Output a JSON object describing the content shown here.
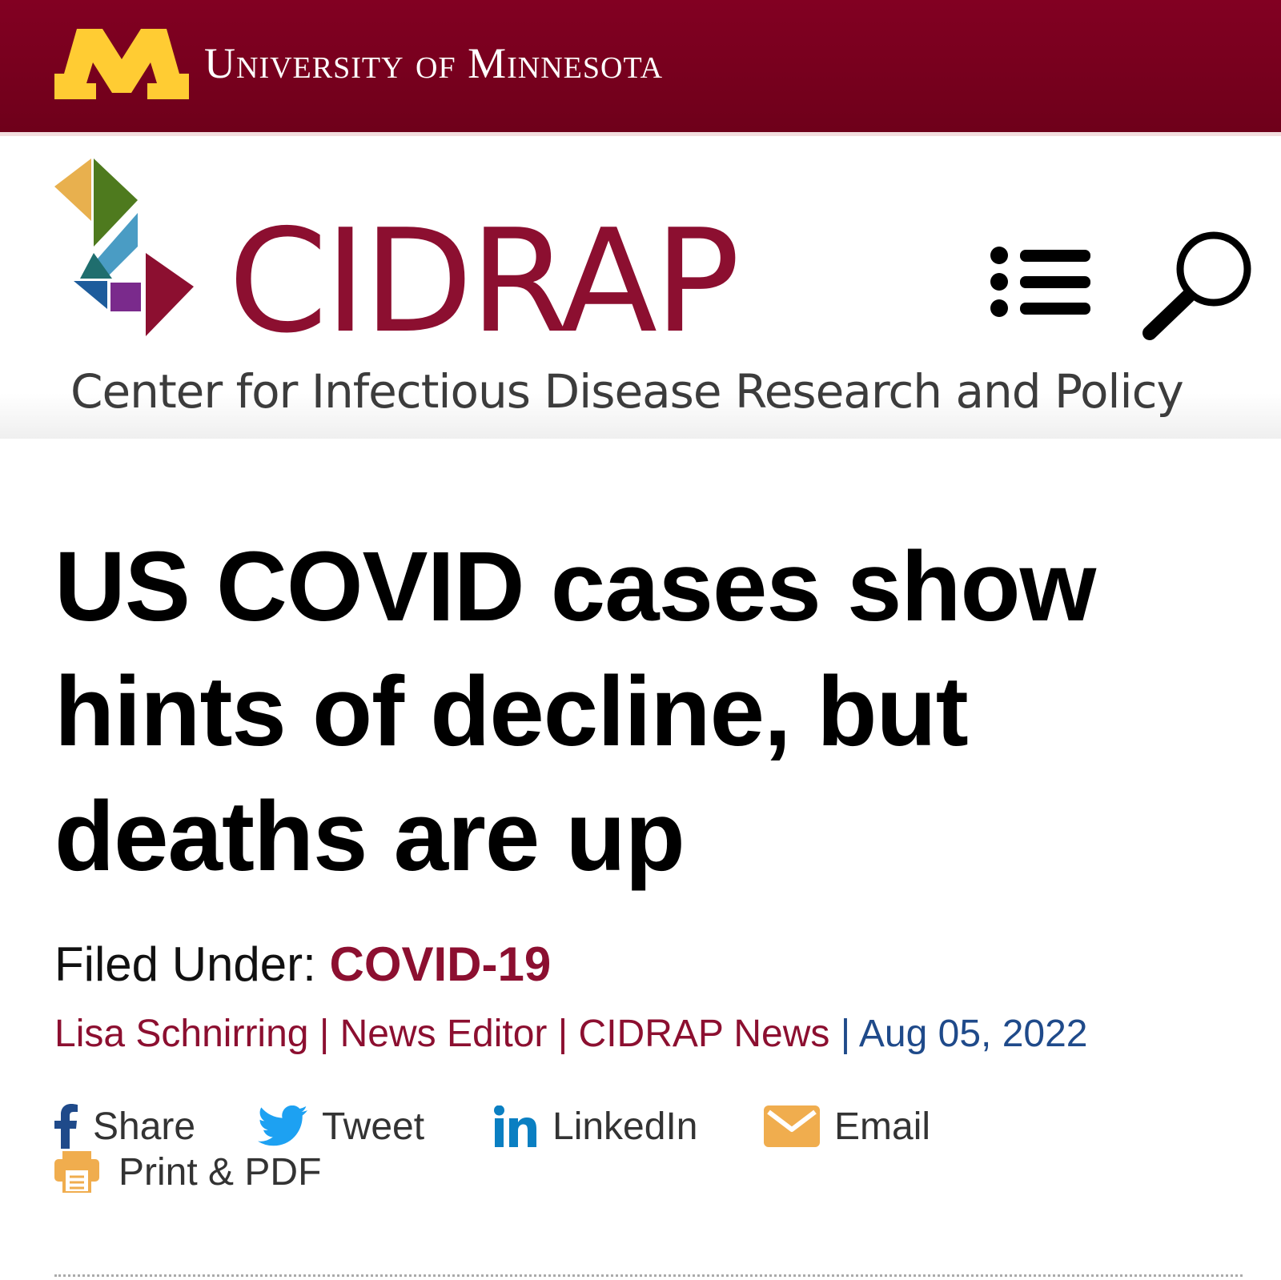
{
  "university": {
    "name": "University of Minnesota",
    "logo_icon": "umn-block-m-icon",
    "gold": "#ffcc33",
    "maroon": "#7a0019"
  },
  "site": {
    "logo_text": "CIDRAP",
    "tagline": "Center for Infectious Disease Research and Policy",
    "brand_color": "#8c0f30",
    "menu_icon": "list-menu-icon",
    "search_icon": "search-icon"
  },
  "article": {
    "headline": "US COVID cases show hints of decline, but deaths are up",
    "filed_under_label": "Filed Under:",
    "category": "COVID-19",
    "author": "Lisa Schnirring",
    "sep1": "|",
    "role": "News Editor",
    "sep2": "|",
    "outlet": "CIDRAP News",
    "sep3": "|",
    "date": "Aug 05, 2022"
  },
  "share": {
    "facebook": {
      "label": "Share",
      "icon": "facebook-icon",
      "color": "#3b5998"
    },
    "twitter": {
      "label": "Tweet",
      "icon": "twitter-icon",
      "color": "#1da1f2"
    },
    "linkedin": {
      "label": "LinkedIn",
      "icon": "linkedin-icon",
      "color": "#0077b5"
    },
    "email": {
      "label": "Email",
      "icon": "envelope-icon",
      "color": "#f0ad4e"
    },
    "print": {
      "label": "Print & PDF",
      "icon": "printer-icon",
      "color": "#f0ad4e"
    }
  }
}
